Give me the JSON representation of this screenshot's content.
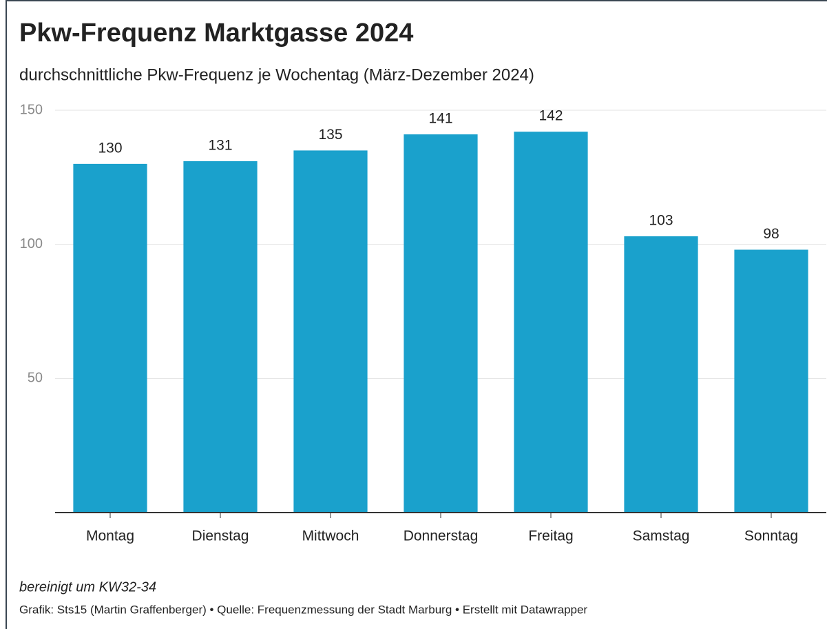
{
  "chart_data": {
    "type": "bar",
    "title": "Pkw-Frequenz Marktgasse 2024",
    "subtitle": "durchschnittliche Pkw-Frequenz je Wochentag (März-Dezember 2024)",
    "categories": [
      "Montag",
      "Dienstag",
      "Mittwoch",
      "Donnerstag",
      "Freitag",
      "Samstag",
      "Sonntag"
    ],
    "values": [
      130,
      131,
      135,
      141,
      142,
      103,
      98
    ],
    "color": "#1aa1cc",
    "ylim": [
      0,
      150
    ],
    "yticks": [
      50,
      100,
      150
    ],
    "grid": true,
    "note": "bereinigt um KW32-34",
    "credit": "Grafik: Sts15 (Martin Graffenberger) • Quelle: Frequenzmessung der Stadt Marburg • Erstellt mit Datawrapper"
  }
}
